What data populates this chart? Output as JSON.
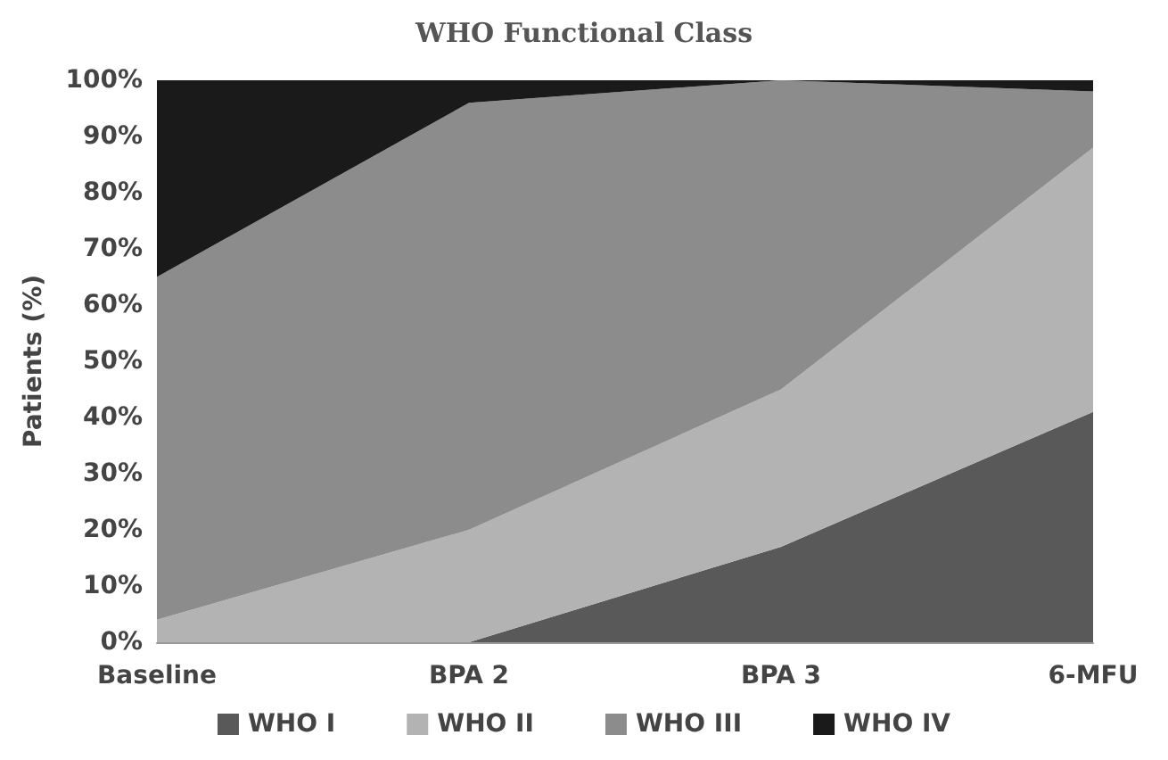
{
  "chart_data": {
    "type": "area",
    "title": "WHO Functional Class",
    "ylabel": "Patients (%)",
    "categories": [
      "Baseline",
      "BPA 2",
      "BPA 3",
      "6-MFU"
    ],
    "stacked": true,
    "legend": "bottom",
    "ylim": [
      0,
      100
    ],
    "yticks": [
      {
        "value": 0,
        "label": "0%"
      },
      {
        "value": 10,
        "label": "10%"
      },
      {
        "value": 20,
        "label": "20%"
      },
      {
        "value": 30,
        "label": "30%"
      },
      {
        "value": 40,
        "label": "40%"
      },
      {
        "value": 50,
        "label": "50%"
      },
      {
        "value": 60,
        "label": "60%"
      },
      {
        "value": 70,
        "label": "70%"
      },
      {
        "value": 80,
        "label": "80%"
      },
      {
        "value": 90,
        "label": "90%"
      },
      {
        "value": 100,
        "label": "100%"
      }
    ],
    "series": [
      {
        "name": "WHO I",
        "color": "#595959",
        "values": [
          0,
          0,
          17,
          41
        ]
      },
      {
        "name": "WHO II",
        "color": "#b3b3b3",
        "values": [
          4,
          20,
          28,
          47
        ]
      },
      {
        "name": "WHO III",
        "color": "#8c8c8c",
        "values": [
          61,
          76,
          55,
          10
        ]
      },
      {
        "name": "WHO IV",
        "color": "#1a1a1a",
        "values": [
          35,
          4,
          0,
          2
        ]
      }
    ]
  }
}
